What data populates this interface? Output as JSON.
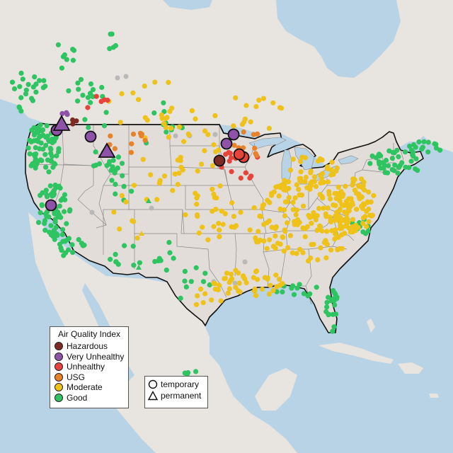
{
  "legend": {
    "title": "Air Quality Index",
    "categories": [
      {
        "label": "Hazardous",
        "color": "#7e2a24"
      },
      {
        "label": "Very Unhealthy",
        "color": "#8e52a8"
      },
      {
        "label": "Unhealthy",
        "color": "#e8433a"
      },
      {
        "label": "USG",
        "color": "#e8822a"
      },
      {
        "label": "Moderate",
        "color": "#efc21a"
      },
      {
        "label": "Good",
        "color": "#2fc462"
      }
    ],
    "shapes": [
      {
        "label": "temporary",
        "icon": "circle-icon"
      },
      {
        "label": "permanent",
        "icon": "triangle-icon"
      }
    ]
  },
  "colors": {
    "ocean": "#b9d3e6",
    "land": "#e7e3de",
    "us_land": "#e2ddd8",
    "lakes": "#b9d3e6",
    "no_data": "#b8b8b8"
  }
}
